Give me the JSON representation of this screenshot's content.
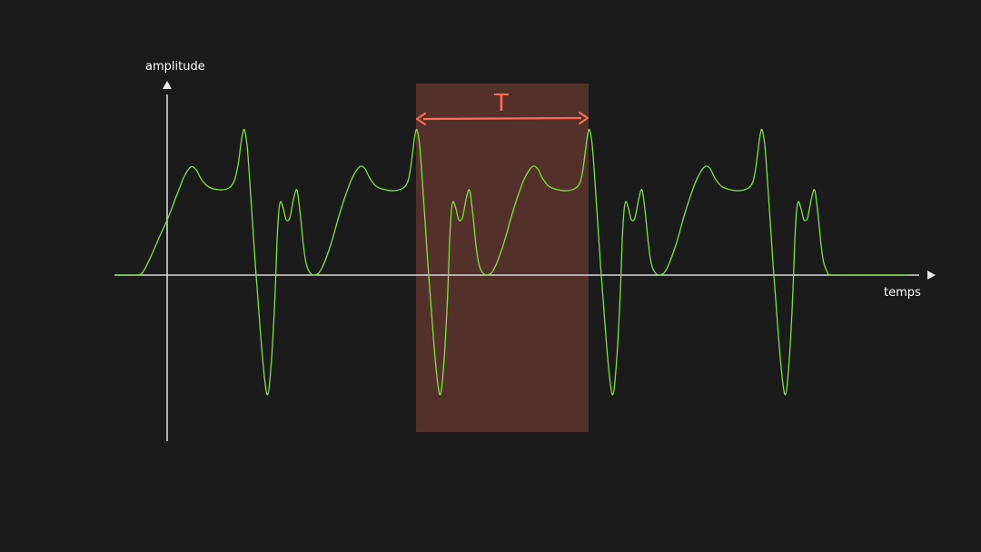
{
  "axes": {
    "y_label": "amplitude",
    "x_label": "temps",
    "color": "#d8d8d8"
  },
  "period": {
    "label": "T",
    "arrow_color": "#ff6a55",
    "highlight_color": "#54302a"
  },
  "signal": {
    "color": "#7ee23a",
    "description_kind": "periodic waveform",
    "period_count_visible": 4
  },
  "colors": {
    "background": "#1b1b1b"
  }
}
